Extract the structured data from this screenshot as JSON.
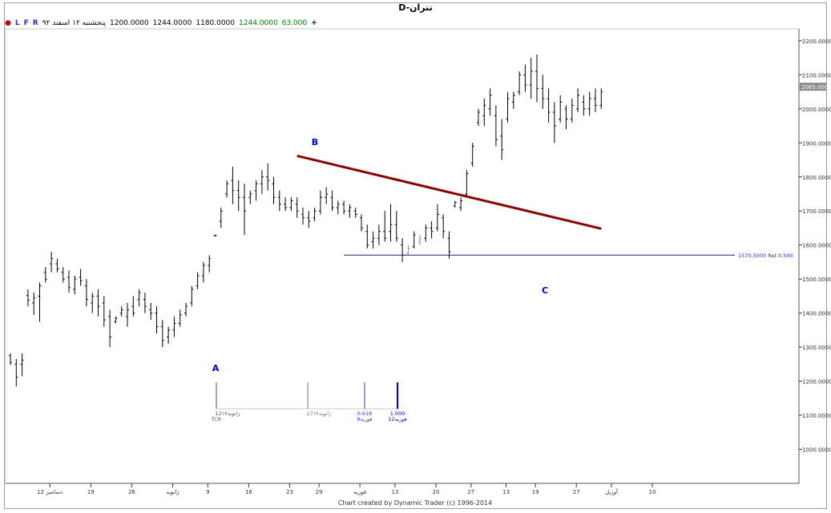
{
  "window": {
    "title": "D-تتران"
  },
  "infobar": {
    "dot_color": "#d00000",
    "buttons": [
      "L",
      "F",
      "R"
    ],
    "date": "پنجشنبه ۱۲ اسفند ۹۲",
    "open": "1200.0000",
    "high": "1244.0000",
    "low": "1180.0000",
    "close": "1244.0000",
    "change": "63.000",
    "plus": "+"
  },
  "chart_data": {
    "type": "ohlc",
    "ylim": [
      900,
      2235
    ],
    "yticks": [
      "2200.00000",
      "2100.00000",
      "2000.00000",
      "1900.00000",
      "1800.00000",
      "1700.00000",
      "1600.00000",
      "1500.00000",
      "1400.00000",
      "1300.00000",
      "1200.00000",
      "1100.00000",
      "1000.00000"
    ],
    "ytick_values": [
      2200,
      2100,
      2000,
      1900,
      1800,
      1700,
      1600,
      1500,
      1400,
      1300,
      1200,
      1100,
      1000
    ],
    "current_price_label": "2065.0000",
    "current_price": 2065,
    "xticks": [
      "12 دسامبر",
      "19",
      "26",
      "ژانویه",
      "9",
      "16",
      "23",
      "29",
      "فوریه",
      "13",
      "20",
      "27",
      "13",
      "19",
      "27",
      "آوریل",
      "10"
    ],
    "bars": [
      {
        "h": 1282,
        "l": 1248,
        "o": 1275,
        "c": 1255
      },
      {
        "h": 1265,
        "l": 1185,
        "o": 1250,
        "c": 1212
      },
      {
        "h": 1282,
        "l": 1215,
        "o": 1250,
        "c": 1262
      },
      {
        "h": 1470,
        "l": 1420,
        "o": 1452,
        "c": 1438
      },
      {
        "h": 1460,
        "l": 1395,
        "o": 1430,
        "c": 1445
      },
      {
        "h": 1490,
        "l": 1375,
        "o": 1450,
        "c": 1480
      },
      {
        "h": 1535,
        "l": 1490,
        "o": 1520,
        "c": 1500
      },
      {
        "h": 1580,
        "l": 1520,
        "o": 1545,
        "c": 1560
      },
      {
        "h": 1560,
        "l": 1520,
        "o": 1545,
        "c": 1530
      },
      {
        "h": 1535,
        "l": 1490,
        "o": 1520,
        "c": 1500
      },
      {
        "h": 1525,
        "l": 1460,
        "o": 1505,
        "c": 1475
      },
      {
        "h": 1510,
        "l": 1455,
        "o": 1470,
        "c": 1500
      },
      {
        "h": 1530,
        "l": 1480,
        "o": 1505,
        "c": 1495
      },
      {
        "h": 1500,
        "l": 1420,
        "o": 1480,
        "c": 1440
      },
      {
        "h": 1460,
        "l": 1400,
        "o": 1430,
        "c": 1450
      },
      {
        "h": 1470,
        "l": 1390,
        "o": 1450,
        "c": 1420
      },
      {
        "h": 1450,
        "l": 1360,
        "o": 1430,
        "c": 1380
      },
      {
        "h": 1410,
        "l": 1300,
        "o": 1390,
        "c": 1330
      },
      {
        "h": 1390,
        "l": 1370,
        "o": 1375,
        "c": 1385
      },
      {
        "h": 1420,
        "l": 1390,
        "o": 1400,
        "c": 1410
      },
      {
        "h": 1430,
        "l": 1360,
        "o": 1390,
        "c": 1410
      },
      {
        "h": 1450,
        "l": 1390,
        "o": 1420,
        "c": 1400
      },
      {
        "h": 1470,
        "l": 1420,
        "o": 1440,
        "c": 1460
      },
      {
        "h": 1460,
        "l": 1400,
        "o": 1440,
        "c": 1420
      },
      {
        "h": 1430,
        "l": 1380,
        "o": 1410,
        "c": 1400
      },
      {
        "h": 1420,
        "l": 1340,
        "o": 1400,
        "c": 1360
      },
      {
        "h": 1380,
        "l": 1300,
        "o": 1360,
        "c": 1320
      },
      {
        "h": 1360,
        "l": 1310,
        "o": 1330,
        "c": 1350
      },
      {
        "h": 1390,
        "l": 1330,
        "o": 1350,
        "c": 1370
      },
      {
        "h": 1410,
        "l": 1360,
        "o": 1370,
        "c": 1395
      },
      {
        "h": 1430,
        "l": 1390,
        "o": 1400,
        "c": 1420
      },
      {
        "h": 1480,
        "l": 1420,
        "o": 1430,
        "c": 1470
      },
      {
        "h": 1520,
        "l": 1470,
        "o": 1480,
        "c": 1510
      },
      {
        "h": 1550,
        "l": 1490,
        "o": 1510,
        "c": 1540
      },
      {
        "h": 1570,
        "l": 1520,
        "o": 1540,
        "c": 1560
      },
      {
        "h": 1630,
        "l": 1625,
        "o": 1628,
        "c": 1628
      },
      {
        "h": 1710,
        "l": 1650,
        "o": 1670,
        "c": 1700
      },
      {
        "h": 1790,
        "l": 1740,
        "o": 1750,
        "c": 1780
      },
      {
        "h": 1830,
        "l": 1720,
        "o": 1790,
        "c": 1760
      },
      {
        "h": 1790,
        "l": 1700,
        "o": 1760,
        "c": 1740
      },
      {
        "h": 1780,
        "l": 1630,
        "o": 1740,
        "c": 1700
      },
      {
        "h": 1760,
        "l": 1720,
        "o": 1740,
        "c": 1750
      },
      {
        "h": 1790,
        "l": 1730,
        "o": 1760,
        "c": 1780
      },
      {
        "h": 1820,
        "l": 1750,
        "o": 1780,
        "c": 1800
      },
      {
        "h": 1840,
        "l": 1760,
        "o": 1800,
        "c": 1790
      },
      {
        "h": 1800,
        "l": 1720,
        "o": 1780,
        "c": 1740
      },
      {
        "h": 1760,
        "l": 1700,
        "o": 1740,
        "c": 1720
      },
      {
        "h": 1740,
        "l": 1700,
        "o": 1720,
        "c": 1710
      },
      {
        "h": 1740,
        "l": 1700,
        "o": 1710,
        "c": 1730
      },
      {
        "h": 1740,
        "l": 1680,
        "o": 1720,
        "c": 1700
      },
      {
        "h": 1710,
        "l": 1660,
        "o": 1690,
        "c": 1680
      },
      {
        "h": 1700,
        "l": 1650,
        "o": 1680,
        "c": 1670
      },
      {
        "h": 1710,
        "l": 1670,
        "o": 1680,
        "c": 1700
      },
      {
        "h": 1760,
        "l": 1690,
        "o": 1700,
        "c": 1740
      },
      {
        "h": 1770,
        "l": 1720,
        "o": 1740,
        "c": 1750
      },
      {
        "h": 1760,
        "l": 1700,
        "o": 1740,
        "c": 1710
      },
      {
        "h": 1730,
        "l": 1690,
        "o": 1710,
        "c": 1720
      },
      {
        "h": 1730,
        "l": 1690,
        "o": 1720,
        "c": 1700
      },
      {
        "h": 1720,
        "l": 1680,
        "o": 1700,
        "c": 1710
      },
      {
        "h": 1710,
        "l": 1680,
        "o": 1700,
        "c": 1690
      },
      {
        "h": 1690,
        "l": 1640,
        "o": 1680,
        "c": 1650
      },
      {
        "h": 1660,
        "l": 1590,
        "o": 1640,
        "c": 1600
      },
      {
        "h": 1640,
        "l": 1590,
        "o": 1610,
        "c": 1620
      },
      {
        "h": 1660,
        "l": 1600,
        "o": 1620,
        "c": 1640
      },
      {
        "h": 1700,
        "l": 1610,
        "o": 1640,
        "c": 1620
      },
      {
        "h": 1720,
        "l": 1610,
        "o": 1640,
        "c": 1660
      },
      {
        "h": 1700,
        "l": 1610,
        "o": 1660,
        "c": 1620
      },
      {
        "h": 1620,
        "l": 1550,
        "o": 1600,
        "c": 1570
      },
      {
        "h": 1600,
        "l": 1570,
        "o": 1575,
        "c": 1590
      },
      {
        "h": 1640,
        "l": 1590,
        "o": 1595,
        "c": 1630
      },
      {
        "h": 1630,
        "l": 1600,
        "o": 1610,
        "c": 1620
      },
      {
        "h": 1660,
        "l": 1610,
        "o": 1620,
        "c": 1650
      },
      {
        "h": 1670,
        "l": 1620,
        "o": 1650,
        "c": 1640
      },
      {
        "h": 1720,
        "l": 1640,
        "o": 1650,
        "c": 1690
      },
      {
        "h": 1690,
        "l": 1620,
        "o": 1680,
        "c": 1640
      },
      {
        "h": 1640,
        "l": 1560,
        "o": 1620,
        "c": 1580
      },
      {
        "h": 1730,
        "l": 1710,
        "o": 1715,
        "c": 1725
      },
      {
        "h": 1740,
        "l": 1700,
        "o": 1710,
        "c": 1730
      },
      {
        "h": 1820,
        "l": 1740,
        "o": 1750,
        "c": 1810
      },
      {
        "h": 1900,
        "l": 1830,
        "o": 1840,
        "c": 1890
      },
      {
        "h": 2000,
        "l": 1950,
        "o": 1960,
        "c": 1990
      },
      {
        "h": 2030,
        "l": 1950,
        "o": 1980,
        "c": 2010
      },
      {
        "h": 2060,
        "l": 1980,
        "o": 2000,
        "c": 2040
      },
      {
        "h": 2010,
        "l": 1890,
        "o": 1980,
        "c": 1910
      },
      {
        "h": 1970,
        "l": 1850,
        "o": 1920,
        "c": 1880
      },
      {
        "h": 2050,
        "l": 1960,
        "o": 1970,
        "c": 2030
      },
      {
        "h": 2050,
        "l": 2000,
        "o": 2020,
        "c": 2040
      },
      {
        "h": 2110,
        "l": 2040,
        "o": 2050,
        "c": 2100
      },
      {
        "h": 2130,
        "l": 2050,
        "o": 2100,
        "c": 2070
      },
      {
        "h": 2150,
        "l": 2030,
        "o": 2070,
        "c": 2110
      },
      {
        "h": 2160,
        "l": 2020,
        "o": 2110,
        "c": 2060
      },
      {
        "h": 2100,
        "l": 2000,
        "o": 2060,
        "c": 2030
      },
      {
        "h": 2060,
        "l": 1960,
        "o": 2030,
        "c": 1990
      },
      {
        "h": 2020,
        "l": 1900,
        "o": 1990,
        "c": 1950
      },
      {
        "h": 2040,
        "l": 1960,
        "o": 1970,
        "c": 2020
      },
      {
        "h": 2010,
        "l": 1940,
        "o": 2000,
        "c": 1970
      },
      {
        "h": 2030,
        "l": 1960,
        "o": 1970,
        "c": 2010
      },
      {
        "h": 2060,
        "l": 1990,
        "o": 2000,
        "c": 2040
      },
      {
        "h": 2040,
        "l": 1980,
        "o": 2020,
        "c": 2000
      },
      {
        "h": 2050,
        "l": 1980,
        "o": 2000,
        "c": 2030
      },
      {
        "h": 2060,
        "l": 1990,
        "o": 2030,
        "c": 2010
      },
      {
        "h": 2060,
        "l": 2000,
        "o": 2010,
        "c": 2050
      }
    ],
    "trendline": {
      "color": "#8b0000",
      "start_price": 1862,
      "end_price": 1648
    },
    "retracement": {
      "price": 1570.5,
      "label": "1570.5000 Ret 0.500",
      "color": "#1a1a8c"
    },
    "wave_labels": [
      {
        "text": "A",
        "color": "#0000cc"
      },
      {
        "text": "B",
        "color": "#0000cc"
      },
      {
        "text": "C",
        "color": "#0000cc"
      }
    ],
    "time_markers": [
      {
        "line1": "12ژانویه۱۴",
        "line2": "TCR",
        "color": "#555555",
        "weight": 1
      },
      {
        "line1": "27ژانویه۱۴",
        "line2": "",
        "color": "#777777",
        "weight": 1
      },
      {
        "line1": "0.618",
        "line2": "6فوریه",
        "color": "#3333cc",
        "weight": 1
      },
      {
        "line1": "1.000",
        "line2": "12فوریه",
        "color": "#0000cc",
        "weight": 2
      }
    ],
    "footer": "Chart created by Dynamic Trader  (c) 1996-2014"
  }
}
